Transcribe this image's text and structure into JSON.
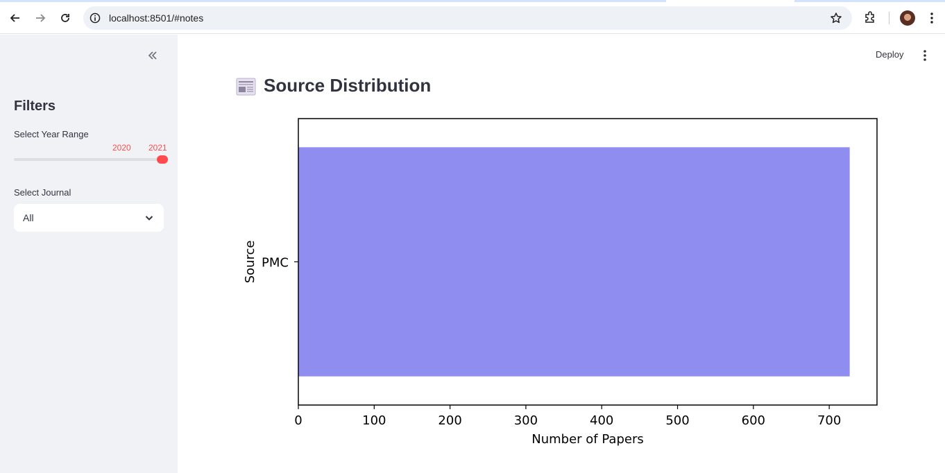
{
  "browser": {
    "url": "localhost:8501/#notes"
  },
  "sidebar": {
    "filters_title": "Filters",
    "year_range": {
      "label": "Select Year Range",
      "min_value": "2020",
      "max_value": "2021"
    },
    "journal": {
      "label": "Select Journal",
      "selected": "All"
    }
  },
  "header": {
    "deploy_label": "Deploy"
  },
  "main": {
    "title": "Source Distribution"
  },
  "colors": {
    "accent": "#ff4b4b",
    "bar": "#8f8ef0",
    "sidebar_bg": "#f0f2f6"
  },
  "chart_data": {
    "type": "bar",
    "orientation": "horizontal",
    "categories": [
      "PMC"
    ],
    "values": [
      727
    ],
    "xlabel": "Number of Papers",
    "ylabel": "Source",
    "xlim": [
      0,
      763
    ],
    "xticks": [
      "0",
      "100",
      "200",
      "300",
      "400",
      "500",
      "600",
      "700"
    ],
    "grid": false
  }
}
